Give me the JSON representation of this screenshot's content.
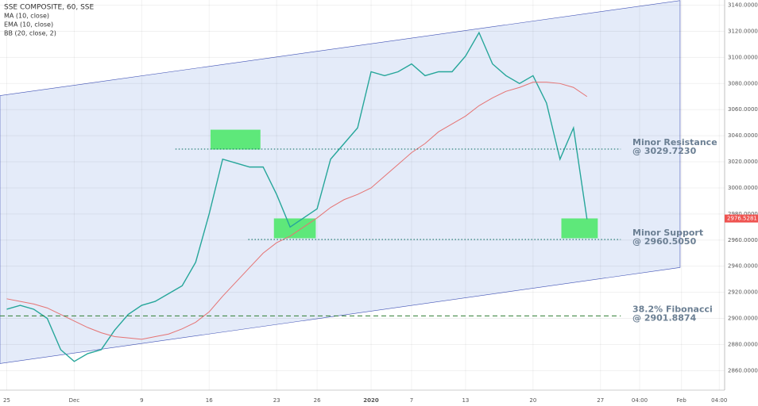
{
  "chart_data": {
    "type": "line",
    "title": "SSE COMPOSITE, 60, SSE",
    "indicators": [
      "EMA (10, close)",
      "BB (20, close, 2)"
    ],
    "x": [
      0,
      1,
      2,
      3,
      4,
      5,
      6,
      7,
      8,
      9,
      10,
      11,
      12,
      13,
      14,
      15,
      16,
      17,
      18,
      19,
      20,
      21,
      22,
      23,
      24,
      25,
      26,
      27,
      28,
      29,
      30,
      31,
      32,
      33,
      34,
      35,
      36,
      37,
      38,
      39,
      40,
      41,
      42,
      43
    ],
    "series": [
      {
        "name": "SSE COMPOSITE",
        "color": "#26a69a",
        "values": [
          2907,
          2910,
          2907,
          2900,
          2876,
          2867,
          2873,
          2876,
          2891,
          2903,
          2910,
          2913,
          2919,
          2925,
          2943,
          2980,
          3022,
          3019,
          3016,
          3016,
          2995,
          2970,
          2977,
          2984,
          3022,
          3034,
          3046,
          3089,
          3086,
          3089,
          3095,
          3086,
          3089,
          3089,
          3101,
          3119,
          3095,
          3086,
          3080,
          3086,
          3065,
          3022,
          3046,
          2976
        ]
      },
      {
        "name": "MA (10, close)",
        "color": "#e57373",
        "values": [
          2915,
          2913,
          2911,
          2908,
          2903,
          2898,
          2893,
          2889,
          2886,
          2885,
          2884,
          2886,
          2888,
          2892,
          2897,
          2905,
          2917,
          2928,
          2939,
          2950,
          2958,
          2963,
          2970,
          2977,
          2985,
          2991,
          2995,
          3000,
          3009,
          3018,
          3027,
          3034,
          3043,
          3049,
          3055,
          3063,
          3069,
          3074,
          3077,
          3081,
          3081,
          3080,
          3077,
          3070
        ]
      }
    ],
    "channel": {
      "x": [
        -0.5,
        49.9
      ],
      "upper": [
        3070.7,
        3143.6
      ],
      "lower": [
        2865.4,
        2939
      ],
      "color": "#dde6f8"
    },
    "zones": [
      {
        "x": [
          15.1,
          18.8
        ],
        "y": [
          3029.4,
          3044.6
        ]
      },
      {
        "x": [
          19.8,
          22.9
        ],
        "y": [
          2961.4,
          2976.6
        ]
      },
      {
        "x": [
          41.1,
          43.8
        ],
        "y": [
          2961.4,
          2976.6
        ]
      }
    ],
    "zone_color": "#5ee87a",
    "levels": [
      {
        "value": 3029.723,
        "x": [
          12.5,
          45.5
        ],
        "title": "Minor Resistance",
        "label": "@ 3029.7230",
        "style": "dotted"
      },
      {
        "value": 2960.505,
        "x": [
          17.9,
          45.5
        ],
        "title": "Minor Support",
        "label": "@ 2960.5050",
        "style": "dotted"
      },
      {
        "value": 2901.8874,
        "x": [
          -0.5,
          45.5
        ],
        "title": "38.2% Fibonacci",
        "label": "@ 2901.8874",
        "style": "dashed"
      }
    ],
    "last_price": {
      "value": 2976.5281,
      "label": "2976.5281"
    },
    "xlim": [
      -0.5,
      53.2
    ],
    "xticks": [
      {
        "value": 0,
        "label": "25"
      },
      {
        "value": 5,
        "label": "Dec"
      },
      {
        "value": 10,
        "label": "9"
      },
      {
        "value": 15,
        "label": "16"
      },
      {
        "value": 20,
        "label": "23"
      },
      {
        "value": 23,
        "label": "26"
      },
      {
        "value": 27,
        "label": "2020"
      },
      {
        "value": 30,
        "label": "7"
      },
      {
        "value": 34,
        "label": "13"
      },
      {
        "value": 39,
        "label": "20"
      },
      {
        "value": 44,
        "label": "27"
      },
      {
        "value": 46.9,
        "label": "04:00"
      },
      {
        "value": 50,
        "label": "Feb"
      },
      {
        "value": 52.8,
        "label": "04:00"
      }
    ],
    "ylim": [
      2845,
      3144
    ],
    "yticks": [
      {
        "value": 2860,
        "label": "2860.0000"
      },
      {
        "value": 2880,
        "label": "2880.0000"
      },
      {
        "value": 2900,
        "label": "2900.0000"
      },
      {
        "value": 2920,
        "label": "2920.0000"
      },
      {
        "value": 2940,
        "label": "2940.0000"
      },
      {
        "value": 2960,
        "label": "2960.0000"
      },
      {
        "value": 2980,
        "label": "2980.0000"
      },
      {
        "value": 3000,
        "label": "3000.0000"
      },
      {
        "value": 3020,
        "label": "3020.0000"
      },
      {
        "value": 3040,
        "label": "3040.0000"
      },
      {
        "value": 3060,
        "label": "3060.0000"
      },
      {
        "value": 3080,
        "label": "3080.0000"
      },
      {
        "value": 3100,
        "label": "3100.0000"
      },
      {
        "value": 3120,
        "label": "3120.0000"
      },
      {
        "value": 3140,
        "label": "3140.0000"
      }
    ]
  }
}
